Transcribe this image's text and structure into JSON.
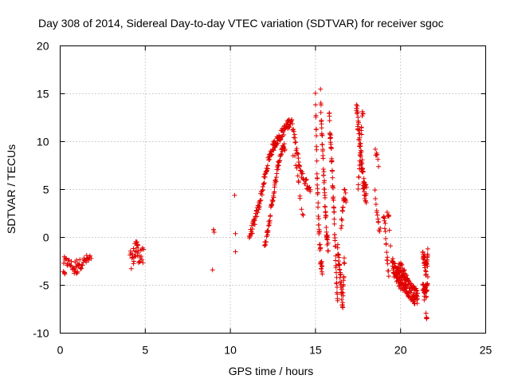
{
  "chart_data": {
    "type": "scatter",
    "title": "Day 308 of 2014, Sidereal Day-to-day VTEC variation (SDTVAR) for receiver sgoc",
    "xlabel": "GPS time / hours",
    "ylabel": "SDTVAR / TECUs",
    "xlim": [
      0,
      25
    ],
    "ylim": [
      -10,
      20
    ],
    "xticks": [
      0,
      5,
      10,
      15,
      20,
      25
    ],
    "yticks": [
      -10,
      -5,
      0,
      5,
      10,
      15,
      20
    ],
    "grid": true,
    "marker": "plus",
    "color": "#e00000",
    "series": [
      {
        "name": "SDTVAR",
        "segments": [
          {
            "x": [
              0.2,
              0.4,
              0.6,
              0.8,
              1.0,
              1.2,
              1.4,
              1.6,
              1.8
            ],
            "y": [
              -2.5,
              -2.6,
              -2.8,
              -3.2,
              -2.6,
              -2.8,
              -2.5,
              -2.3,
              -2.2
            ],
            "step": 0.04,
            "jitter": 0.5
          },
          {
            "x": [
              0.2,
              0.25,
              0.3
            ],
            "y": [
              -3.6,
              -3.8,
              -4.0
            ],
            "step": 0.05,
            "jitter": 0.2
          },
          {
            "x": [
              0.85,
              0.95,
              1.05
            ],
            "y": [
              -3.6,
              -3.9,
              -3.5
            ],
            "step": 0.05,
            "jitter": 0.3
          },
          {
            "x": [
              4.1,
              4.3,
              4.5,
              4.7,
              4.9
            ],
            "y": [
              -2.5,
              -2.0,
              -1.5,
              -1.8,
              -2.2
            ],
            "step": 0.03,
            "jitter": 1.0
          },
          {
            "x": [
              4.4,
              4.5,
              4.6
            ],
            "y": [
              -0.8,
              -0.5,
              -1.2
            ],
            "step": 0.05,
            "jitter": 0.3
          },
          {
            "x": [
              9.0,
              9.05
            ],
            "y": [
              1.0,
              0.6
            ],
            "step": 0.03,
            "jitter": 0.2
          },
          {
            "x": [
              8.95
            ],
            "y": [
              -3.4
            ],
            "step": 0.05,
            "jitter": 0.0
          },
          {
            "x": [
              10.25
            ],
            "y": [
              4.4
            ],
            "step": 0.05,
            "jitter": 0.0
          },
          {
            "x": [
              10.3
            ],
            "y": [
              0.4
            ],
            "step": 0.05,
            "jitter": 0.0
          },
          {
            "x": [
              10.3
            ],
            "y": [
              -1.5
            ],
            "step": 0.05,
            "jitter": 0.0
          },
          {
            "x": [
              11.1,
              11.4,
              11.7,
              12.0,
              12.3,
              12.6,
              12.8,
              13.0,
              13.3,
              13.6
            ],
            "y": [
              0.0,
              1.5,
              3.5,
              6.0,
              8.5,
              9.8,
              10.2,
              10.8,
              11.6,
              12.3
            ],
            "step": 0.02,
            "jitter": 0.5
          },
          {
            "x": [
              12.0,
              12.2,
              12.4,
              12.6,
              12.8,
              13.0,
              13.2
            ],
            "y": [
              -1.0,
              0.8,
              3.0,
              5.2,
              7.5,
              9.0,
              9.5
            ],
            "step": 0.02,
            "jitter": 0.4
          },
          {
            "x": [
              13.6,
              13.8,
              14.0,
              14.2,
              14.5,
              14.7
            ],
            "y": [
              12.0,
              10.0,
              8.0,
              6.5,
              5.5,
              5.0
            ],
            "step": 0.03,
            "jitter": 0.5
          },
          {
            "x": [
              13.7,
              14.0,
              14.3
            ],
            "y": [
              9.0,
              5.5,
              2.0
            ],
            "step": 0.06,
            "jitter": 0.5
          },
          {
            "x": [
              15.0,
              15.05,
              15.1,
              15.2,
              15.3,
              15.4
            ],
            "y": [
              14.5,
              11.0,
              6.0,
              1.0,
              -2.0,
              -3.5
            ],
            "step": 0.01,
            "jitter": 0.8
          },
          {
            "x": [
              15.3,
              15.35,
              15.45,
              15.55,
              15.65,
              15.75
            ],
            "y": [
              15.0,
              12.0,
              8.0,
              4.0,
              0.5,
              -1.0
            ],
            "step": 0.01,
            "jitter": 0.8
          },
          {
            "x": [
              15.8,
              15.9,
              16.0,
              16.1,
              16.2,
              16.3
            ],
            "y": [
              12.5,
              10.0,
              6.0,
              2.0,
              -3.0,
              -6.8
            ],
            "step": 0.01,
            "jitter": 0.8
          },
          {
            "x": [
              16.3,
              16.4,
              16.5,
              16.6,
              16.7
            ],
            "y": [
              -1.0,
              -3.0,
              -5.0,
              -7.0,
              -2.0
            ],
            "step": 0.01,
            "jitter": 0.8
          },
          {
            "x": [
              16.5,
              16.6,
              16.7,
              16.8
            ],
            "y": [
              1.0,
              3.0,
              4.5,
              4.0
            ],
            "step": 0.02,
            "jitter": 0.7
          },
          {
            "x": [
              17.4,
              17.5,
              17.6,
              17.7,
              17.8,
              17.9,
              18.0
            ],
            "y": [
              14.0,
              12.0,
              10.0,
              8.0,
              6.0,
              5.0,
              4.5
            ],
            "step": 0.01,
            "jitter": 1.0
          },
          {
            "x": [
              17.5,
              17.6,
              17.7,
              17.8
            ],
            "y": [
              5.0,
              8.0,
              11.0,
              13.5
            ],
            "step": 0.02,
            "jitter": 0.8
          },
          {
            "x": [
              18.5,
              18.6,
              18.7
            ],
            "y": [
              9.0,
              8.5,
              7.5
            ],
            "step": 0.04,
            "jitter": 0.3
          },
          {
            "x": [
              18.5,
              18.6,
              18.7,
              18.8
            ],
            "y": [
              4.5,
              3.0,
              1.5,
              0.5
            ],
            "step": 0.03,
            "jitter": 0.5
          },
          {
            "x": [
              19.0,
              19.1,
              19.2,
              19.3
            ],
            "y": [
              2.5,
              1.0,
              -2.0,
              -3.5
            ],
            "step": 0.02,
            "jitter": 0.6
          },
          {
            "x": [
              19.2,
              19.3,
              19.4
            ],
            "y": [
              2.5,
              2.0,
              -0.5
            ],
            "step": 0.04,
            "jitter": 0.4
          },
          {
            "x": [
              19.5,
              19.8,
              20.0,
              20.3,
              20.5,
              20.8,
              21.0
            ],
            "y": [
              -2.8,
              -4.0,
              -4.5,
              -4.8,
              -5.5,
              -6.0,
              -6.2
            ],
            "step": 0.01,
            "jitter": 0.9
          },
          {
            "x": [
              19.8,
              20.0,
              20.2,
              20.4
            ],
            "y": [
              -3.5,
              -3.0,
              -3.8,
              -4.5
            ],
            "step": 0.02,
            "jitter": 0.5
          },
          {
            "x": [
              21.3,
              21.4,
              21.5,
              21.6
            ],
            "y": [
              -1.5,
              -2.5,
              -3.5,
              -2.0
            ],
            "step": 0.01,
            "jitter": 0.8
          },
          {
            "x": [
              21.3,
              21.4,
              21.5,
              21.6
            ],
            "y": [
              -5.0,
              -6.0,
              -5.5,
              -4.5
            ],
            "step": 0.01,
            "jitter": 0.8
          },
          {
            "x": [
              21.5,
              21.55
            ],
            "y": [
              -8.0,
              -8.6
            ],
            "step": 0.02,
            "jitter": 0.3
          },
          {
            "x": [
              21.6
            ],
            "y": [
              -1.2
            ],
            "step": 0.05,
            "jitter": 0.2
          }
        ]
      }
    ]
  }
}
